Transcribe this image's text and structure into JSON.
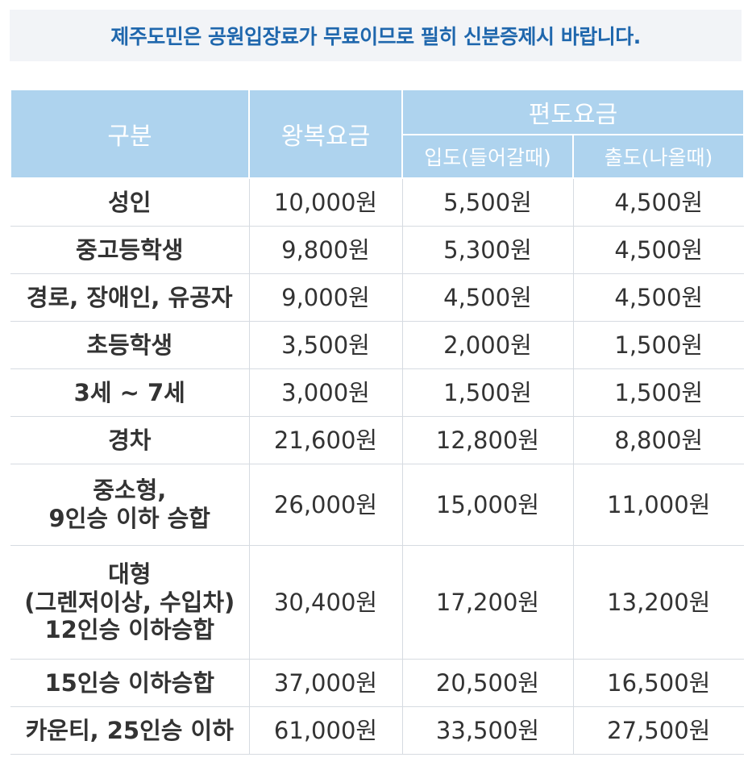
{
  "notice": "제주도민은 공원입장료가 무료이므로 필히 신분증제시 바랍니다.",
  "table": {
    "headers": {
      "category": "구분",
      "round_trip": "왕복요금",
      "one_way": "편도요금",
      "entering": "입도(들어갈때)",
      "leaving": "출도(나올때)"
    },
    "rows": [
      {
        "category": "성인",
        "round_trip": "10,000원",
        "entering": "5,500원",
        "leaving": "4,500원"
      },
      {
        "category": "중고등학생",
        "round_trip": "9,800원",
        "entering": "5,300원",
        "leaving": "4,500원"
      },
      {
        "category": "경로, 장애인, 유공자",
        "round_trip": "9,000원",
        "entering": "4,500원",
        "leaving": "4,500원"
      },
      {
        "category": "초등학생",
        "round_trip": "3,500원",
        "entering": "2,000원",
        "leaving": "1,500원"
      },
      {
        "category": "3세 ~ 7세",
        "round_trip": "3,000원",
        "entering": "1,500원",
        "leaving": "1,500원"
      },
      {
        "category": "경차",
        "round_trip": "21,600원",
        "entering": "12,800원",
        "leaving": "8,800원"
      },
      {
        "category": "중소형,\n9인승 이하 승합",
        "round_trip": "26,000원",
        "entering": "15,000원",
        "leaving": "11,000원"
      },
      {
        "category": "대형\n(그렌저이상, 수입차)\n12인승 이하승합",
        "round_trip": "30,400원",
        "entering": "17,200원",
        "leaving": "13,200원"
      },
      {
        "category": "15인승 이하승합",
        "round_trip": "37,000원",
        "entering": "20,500원",
        "leaving": "16,500원"
      },
      {
        "category": "카운티, 25인승 이하",
        "round_trip": "61,000원",
        "entering": "33,500원",
        "leaving": "27,500원"
      }
    ]
  }
}
